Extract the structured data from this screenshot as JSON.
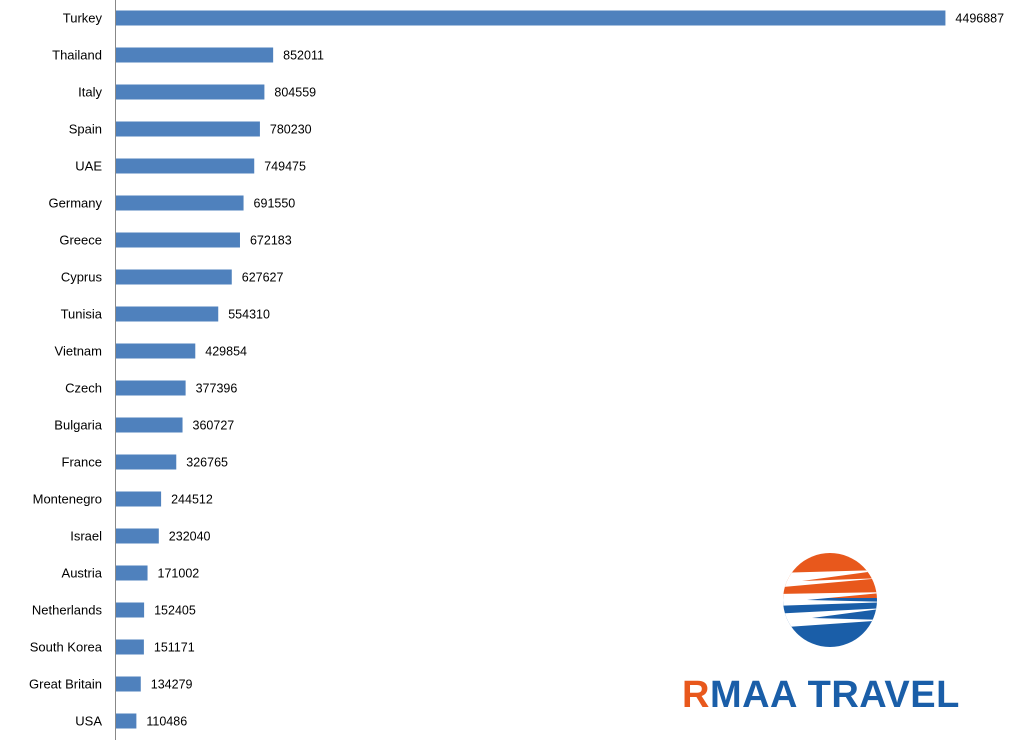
{
  "chart_data": {
    "type": "bar",
    "orientation": "horizontal",
    "categories": [
      "Turkey",
      "Thailand",
      "Italy",
      "Spain",
      "UAE",
      "Germany",
      "Greece",
      "Cyprus",
      "Tunisia",
      "Vietnam",
      "Czech",
      "Bulgaria",
      "France",
      "Montenegro",
      "Israel",
      "Austria",
      "Netherlands",
      "South Korea",
      "Great Britain",
      "USA"
    ],
    "values": [
      4496887,
      852011,
      804559,
      780230,
      749475,
      691550,
      672183,
      627627,
      554310,
      429854,
      377396,
      360727,
      326765,
      244512,
      232040,
      171002,
      152405,
      151171,
      134279,
      110486
    ],
    "data_labels": [
      "4496887",
      "852011",
      "804559",
      "780230",
      "749475",
      "691550",
      "672183",
      "627627",
      "554310",
      "429854",
      "377396",
      "360727",
      "326765",
      "244512",
      "232040",
      "171002",
      "152405",
      "151171",
      "134279",
      "110486"
    ],
    "xlim": [
      0,
      4500000
    ],
    "grid": false,
    "legend": "none",
    "bar_color": "#4f81bd"
  },
  "logo": {
    "first_letter": "R",
    "rest_text": "MAA TRAVEL",
    "colors": {
      "orange": "#e8581c",
      "blue": "#1a5ea8"
    }
  }
}
